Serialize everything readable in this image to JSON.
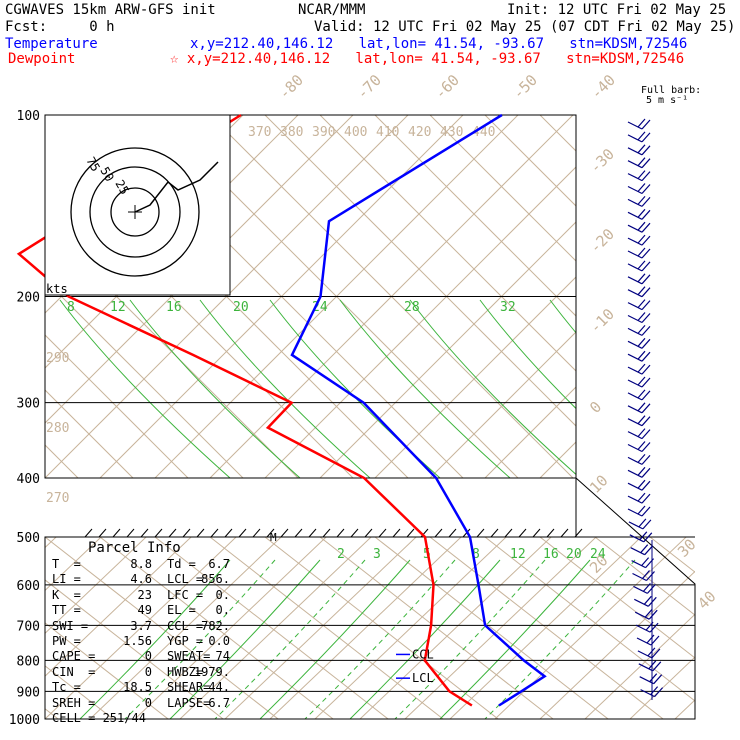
{
  "header": {
    "model": "CGWAVES 15km ARW-GFS init",
    "org": "NCAR/MMM",
    "init": "Init: 12 UTC Fri 02 May 25",
    "fcst": "Fcst:     0 h",
    "valid": "Valid: 12 UTC Fri 02 May 25 (07 CDT Fri 02 May 25)",
    "temp_label": "Temperature",
    "temp_info": "x,y=212.40,146.12   lat,lon= 41.54, -93.67   stn=KDSM,72546",
    "dew_label": "Dewpoint",
    "dew_info": "☆ x,y=212.40,146.12   lat,lon= 41.54, -93.67   stn=KDSM,72546",
    "barb_note_1": "Full barb:",
    "barb_note_2": "5 m s⁻¹"
  },
  "chart_data": {
    "type": "line",
    "title": "CGWAVES 15km ARW-GFS init",
    "y_axis": "pressure (hPa), log scale",
    "pressure_ticks": [
      "100",
      "200",
      "300",
      "400",
      "500",
      "600",
      "700",
      "800",
      "900",
      "1000"
    ],
    "theta_labels": [
      "370",
      "380",
      "390",
      "400",
      "410",
      "420",
      "430",
      "440"
    ],
    "theta_left_labels": [
      "290",
      "280",
      "270"
    ],
    "temp_iso_labels_top": [
      "-80",
      "-70",
      "-60",
      "-50",
      "-40"
    ],
    "temp_iso_labels_right": [
      "-30",
      "-20",
      "-10",
      "0",
      "10",
      "20",
      "30",
      "40"
    ],
    "mixing_ratio_labels_upper": [
      "8",
      "12",
      "16",
      "20",
      "24",
      "28",
      "32"
    ],
    "mixing_ratio_labels_lower": [
      "2",
      "3",
      "5",
      "8",
      "12",
      "16",
      "20",
      "24"
    ],
    "series": [
      {
        "name": "Temperature",
        "color": "#0000ff",
        "points": [
          [
            100,
            -51
          ],
          [
            150,
            -59
          ],
          [
            200,
            -52
          ],
          [
            250,
            -49
          ],
          [
            300,
            -36
          ],
          [
            400,
            -20
          ],
          [
            500,
            -10
          ],
          [
            600,
            -4
          ],
          [
            700,
            1
          ],
          [
            800,
            9
          ],
          [
            850,
            13
          ],
          [
            900,
            12
          ],
          [
            950,
            11
          ]
        ]
      },
      {
        "name": "Dewpoint",
        "color": "#ff0000",
        "points": [
          [
            100,
            -80
          ],
          [
            170,
            -90
          ],
          [
            200,
            -80
          ],
          [
            250,
            -60
          ],
          [
            300,
            -44
          ],
          [
            330,
            -44
          ],
          [
            400,
            -28
          ],
          [
            500,
            -15
          ],
          [
            600,
            -9
          ],
          [
            700,
            -5
          ],
          [
            800,
            -2
          ],
          [
            900,
            4
          ],
          [
            950,
            8
          ]
        ]
      }
    ],
    "levels_labels": [
      "CCL",
      "LCL"
    ],
    "parcel_marker": "M",
    "hodograph": {
      "ring_labels": [
        "75",
        "50",
        "25"
      ],
      "units_label": "kts"
    },
    "parcel_info": {
      "title": "Parcel Info",
      "rows": [
        [
          "T  =",
          "8.8",
          "Td =",
          "6.7"
        ],
        [
          "LI =",
          "4.6",
          "LCL =",
          "856."
        ],
        [
          "K  =",
          "23",
          "LFC =",
          "0."
        ],
        [
          "TT =",
          "49",
          "EL =",
          "0."
        ],
        [
          "SWI =",
          "3.7",
          "CCL =",
          "782."
        ],
        [
          "PW =",
          "1.56",
          "YGP =",
          "0.0"
        ],
        [
          "CAPE =",
          "0",
          "SWEAT=",
          "74"
        ],
        [
          "CIN  =",
          "0",
          "HWBZ=",
          "1979."
        ],
        [
          "Tc =",
          "18.5",
          "SHEAR=",
          "44."
        ],
        [
          "SREH =",
          "0",
          "LAPSE=",
          "6.7"
        ]
      ],
      "cell": "CELL = 251/44"
    },
    "wind_barbs_count": 45
  }
}
